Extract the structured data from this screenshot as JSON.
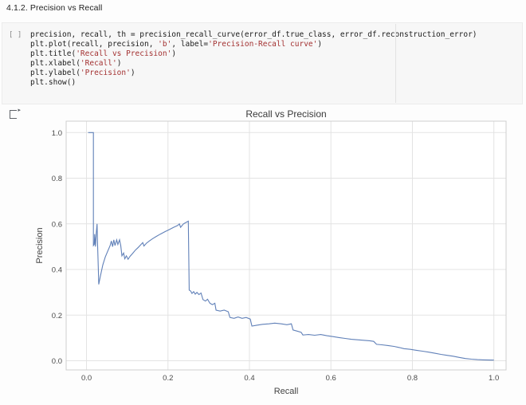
{
  "heading": {
    "text": "4.1.2. Precision vs Recall"
  },
  "code_cell": {
    "prompt": "[ ]",
    "lines": [
      [
        {
          "t": "precision, recall, th = precision_recall_curve(error_df.true_class, error_df.reconstruction_error)",
          "c": "plain"
        }
      ],
      [
        {
          "t": "plt.plot(recall, precision, ",
          "c": "plain"
        },
        {
          "t": "'b'",
          "c": "str"
        },
        {
          "t": ", label=",
          "c": "plain"
        },
        {
          "t": "'Precision-Recall curve'",
          "c": "str"
        },
        {
          "t": ")",
          "c": "plain"
        }
      ],
      [
        {
          "t": "plt.title(",
          "c": "plain"
        },
        {
          "t": "'Recall vs Precision'",
          "c": "str"
        },
        {
          "t": ")",
          "c": "plain"
        }
      ],
      [
        {
          "t": "plt.xlabel(",
          "c": "plain"
        },
        {
          "t": "'Recall'",
          "c": "str"
        },
        {
          "t": ")",
          "c": "plain"
        }
      ],
      [
        {
          "t": "plt.ylabel(",
          "c": "plain"
        },
        {
          "t": "'Precision'",
          "c": "str"
        },
        {
          "t": ")",
          "c": "plain"
        }
      ],
      [
        {
          "t": "plt.show()",
          "c": "plain"
        }
      ]
    ]
  },
  "output_cell": {
    "indicator": "output-run-marker"
  },
  "colors": {
    "curve": "#6080b8",
    "grid": "#e3e3e3",
    "frame": "#cfcfcf",
    "string_token": "#a33131",
    "cell_background": "#f7f7f7"
  },
  "chart_data": {
    "type": "line",
    "title": "Recall vs Precision",
    "xlabel": "Recall",
    "ylabel": "Precision",
    "xlim": [
      -0.05,
      1.03
    ],
    "ylim": [
      -0.04,
      1.05
    ],
    "xticks": [
      0.0,
      0.2,
      0.4,
      0.6,
      0.8,
      1.0
    ],
    "yticks": [
      0.0,
      0.2,
      0.4,
      0.6,
      0.8,
      1.0
    ],
    "grid": true,
    "legend": false,
    "series": [
      {
        "name": "Precision-Recall curve",
        "points": [
          [
            0.004,
            1.0
          ],
          [
            0.017,
            1.0
          ],
          [
            0.017,
            0.505
          ],
          [
            0.019,
            0.51
          ],
          [
            0.02,
            0.555
          ],
          [
            0.022,
            0.5
          ],
          [
            0.024,
            0.56
          ],
          [
            0.026,
            0.6
          ],
          [
            0.027,
            0.515
          ],
          [
            0.029,
            0.4
          ],
          [
            0.03,
            0.335
          ],
          [
            0.034,
            0.37
          ],
          [
            0.04,
            0.42
          ],
          [
            0.046,
            0.455
          ],
          [
            0.052,
            0.48
          ],
          [
            0.058,
            0.505
          ],
          [
            0.061,
            0.525
          ],
          [
            0.064,
            0.5
          ],
          [
            0.067,
            0.53
          ],
          [
            0.07,
            0.505
          ],
          [
            0.074,
            0.53
          ],
          [
            0.077,
            0.51
          ],
          [
            0.081,
            0.53
          ],
          [
            0.084,
            0.505
          ],
          [
            0.087,
            0.46
          ],
          [
            0.091,
            0.472
          ],
          [
            0.094,
            0.447
          ],
          [
            0.098,
            0.46
          ],
          [
            0.102,
            0.445
          ],
          [
            0.107,
            0.458
          ],
          [
            0.113,
            0.47
          ],
          [
            0.12,
            0.485
          ],
          [
            0.127,
            0.497
          ],
          [
            0.133,
            0.508
          ],
          [
            0.138,
            0.518
          ],
          [
            0.141,
            0.503
          ],
          [
            0.147,
            0.515
          ],
          [
            0.154,
            0.525
          ],
          [
            0.162,
            0.535
          ],
          [
            0.171,
            0.545
          ],
          [
            0.181,
            0.555
          ],
          [
            0.192,
            0.565
          ],
          [
            0.203,
            0.575
          ],
          [
            0.214,
            0.585
          ],
          [
            0.224,
            0.593
          ],
          [
            0.228,
            0.6
          ],
          [
            0.231,
            0.585
          ],
          [
            0.238,
            0.6
          ],
          [
            0.246,
            0.608
          ],
          [
            0.25,
            0.612
          ],
          [
            0.252,
            0.31
          ],
          [
            0.256,
            0.305
          ],
          [
            0.259,
            0.295
          ],
          [
            0.263,
            0.303
          ],
          [
            0.267,
            0.292
          ],
          [
            0.271,
            0.3
          ],
          [
            0.276,
            0.29
          ],
          [
            0.281,
            0.297
          ],
          [
            0.286,
            0.268
          ],
          [
            0.292,
            0.262
          ],
          [
            0.297,
            0.27
          ],
          [
            0.303,
            0.252
          ],
          [
            0.309,
            0.246
          ],
          [
            0.315,
            0.252
          ],
          [
            0.318,
            0.222
          ],
          [
            0.328,
            0.218
          ],
          [
            0.338,
            0.222
          ],
          [
            0.348,
            0.215
          ],
          [
            0.352,
            0.19
          ],
          [
            0.362,
            0.186
          ],
          [
            0.372,
            0.192
          ],
          [
            0.382,
            0.186
          ],
          [
            0.392,
            0.19
          ],
          [
            0.402,
            0.183
          ],
          [
            0.406,
            0.152
          ],
          [
            0.418,
            0.156
          ],
          [
            0.432,
            0.16
          ],
          [
            0.448,
            0.162
          ],
          [
            0.462,
            0.165
          ],
          [
            0.478,
            0.162
          ],
          [
            0.492,
            0.158
          ],
          [
            0.503,
            0.162
          ],
          [
            0.507,
            0.135
          ],
          [
            0.517,
            0.13
          ],
          [
            0.527,
            0.125
          ],
          [
            0.531,
            0.113
          ],
          [
            0.545,
            0.115
          ],
          [
            0.56,
            0.112
          ],
          [
            0.575,
            0.115
          ],
          [
            0.59,
            0.11
          ],
          [
            0.605,
            0.106
          ],
          [
            0.62,
            0.102
          ],
          [
            0.635,
            0.098
          ],
          [
            0.65,
            0.094
          ],
          [
            0.665,
            0.092
          ],
          [
            0.68,
            0.09
          ],
          [
            0.695,
            0.088
          ],
          [
            0.705,
            0.085
          ],
          [
            0.712,
            0.072
          ],
          [
            0.725,
            0.07
          ],
          [
            0.74,
            0.067
          ],
          [
            0.755,
            0.063
          ],
          [
            0.768,
            0.058
          ],
          [
            0.78,
            0.053
          ],
          [
            0.795,
            0.05
          ],
          [
            0.81,
            0.046
          ],
          [
            0.825,
            0.042
          ],
          [
            0.84,
            0.038
          ],
          [
            0.855,
            0.033
          ],
          [
            0.87,
            0.028
          ],
          [
            0.885,
            0.024
          ],
          [
            0.9,
            0.02
          ],
          [
            0.915,
            0.015
          ],
          [
            0.93,
            0.01
          ],
          [
            0.945,
            0.007
          ],
          [
            0.96,
            0.005
          ],
          [
            0.975,
            0.004
          ],
          [
            1.0,
            0.003
          ]
        ]
      }
    ]
  }
}
